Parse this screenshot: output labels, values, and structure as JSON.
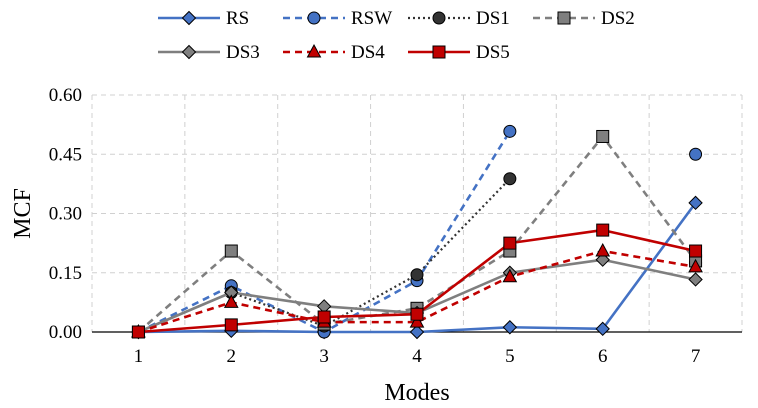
{
  "chart_data": {
    "type": "line",
    "xlabel": "Modes",
    "ylabel": "MCF",
    "x": [
      1,
      2,
      3,
      4,
      5,
      6,
      7
    ],
    "xlim": [
      0.5,
      7.5
    ],
    "ylim": [
      0,
      0.6
    ],
    "yticks": [
      "0.00",
      "0.15",
      "0.30",
      "0.45",
      "0.60"
    ],
    "grid": "dashed",
    "legend_position": "top",
    "series": [
      {
        "name": "RS",
        "color": "#4472C4",
        "dash": "solid",
        "marker": "diamond",
        "values": [
          0.0,
          0.003,
          0.0,
          0.0,
          0.012,
          0.008,
          0.327
        ]
      },
      {
        "name": "RSW",
        "color": "#4472C4",
        "dash": "dashed",
        "marker": "circle",
        "values": [
          0.0,
          0.117,
          0.0,
          0.13,
          0.508,
          null,
          0.45
        ]
      },
      {
        "name": "DS1",
        "color": "#333333",
        "dash": "dotted",
        "marker": "circle",
        "values": [
          0.0,
          0.1,
          0.015,
          0.145,
          0.388,
          null,
          0.175
        ]
      },
      {
        "name": "DS2",
        "color": "#7F7F7F",
        "dash": "dashed",
        "marker": "square",
        "values": [
          0.0,
          0.205,
          0.02,
          0.06,
          0.205,
          0.495,
          0.18
        ]
      },
      {
        "name": "DS3",
        "color": "#7F7F7F",
        "dash": "solid",
        "marker": "diamond",
        "values": [
          0.0,
          0.1,
          0.065,
          0.048,
          0.15,
          0.183,
          0.133
        ]
      },
      {
        "name": "DS4",
        "color": "#C00000",
        "dash": "dashed",
        "marker": "triangle",
        "values": [
          0.0,
          0.075,
          0.025,
          0.025,
          0.14,
          0.205,
          0.165
        ]
      },
      {
        "name": "DS5",
        "color": "#C00000",
        "dash": "solid",
        "marker": "square",
        "values": [
          0.0,
          0.018,
          0.038,
          0.045,
          0.225,
          0.258,
          0.205
        ]
      }
    ]
  }
}
